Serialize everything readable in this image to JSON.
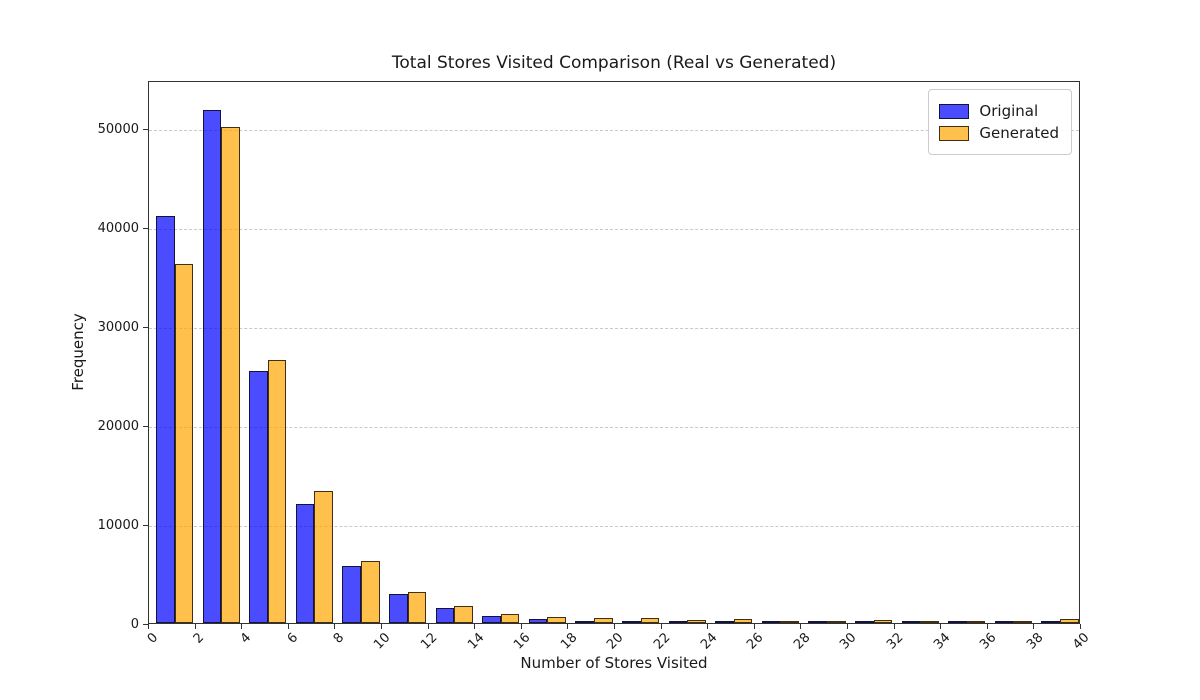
{
  "chart_data": {
    "type": "bar",
    "title": "Total Stores Visited Comparison (Real vs Generated)",
    "xlabel": "Number of Stores Visited",
    "ylabel": "Frequency",
    "grid": "horizontal-dashed",
    "legend_position": "top-right-inside",
    "xlim": [
      0,
      40
    ],
    "ylim": [
      0,
      54900
    ],
    "xticks": [
      0,
      2,
      4,
      6,
      8,
      10,
      12,
      14,
      16,
      18,
      20,
      22,
      24,
      26,
      28,
      30,
      32,
      34,
      36,
      38,
      40
    ],
    "yticks": [
      0,
      10000,
      20000,
      30000,
      40000,
      50000
    ],
    "bin_width": 2,
    "bin_starts": [
      0,
      2,
      4,
      6,
      8,
      10,
      12,
      14,
      16,
      18,
      20,
      22,
      24,
      26,
      28,
      30,
      32,
      34,
      36,
      38
    ],
    "series": [
      {
        "name": "Original",
        "color": "#0000ff",
        "alpha": 0.7,
        "values": [
          41200,
          51900,
          25500,
          12000,
          5800,
          2950,
          1500,
          700,
          400,
          250,
          150,
          100,
          50,
          30,
          80,
          20,
          60,
          10,
          10,
          10
        ]
      },
      {
        "name": "Generated",
        "color": "#ffa500",
        "alpha": 0.7,
        "values": [
          36300,
          50200,
          26600,
          13300,
          6300,
          3150,
          1700,
          900,
          600,
          550,
          500,
          350,
          450,
          250,
          200,
          300,
          200,
          30,
          250,
          400
        ]
      }
    ],
    "edge_color": "#000000",
    "grid_color": "#c9c9c9"
  }
}
